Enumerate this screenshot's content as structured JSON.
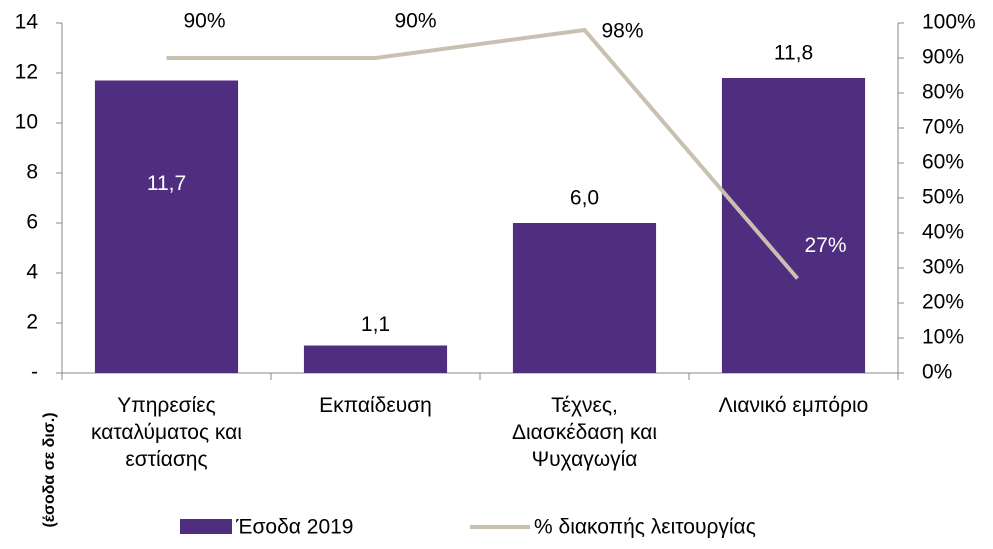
{
  "chart_data": {
    "type": "bar-line",
    "y_label": "(έσοδα σε δισ.)",
    "categories": [
      "Υπηρεσίες καταλύματος και εστίασης",
      "Εκπαίδευση",
      "Τέχνες, Διασκέδαση και Ψυχαγωγία",
      "Λιανικό εμπόριο"
    ],
    "series": [
      {
        "name": "Έσοδα 2019",
        "type": "bar",
        "color": "#4f2d7f",
        "values": [
          11.7,
          1.1,
          6.0,
          11.8
        ],
        "value_labels": [
          "11,7",
          "1,1",
          "6,0",
          "11,8"
        ]
      },
      {
        "name": "% διακοπής λειτουργίας",
        "type": "line",
        "axis": "y2",
        "color": "#c9c0b2",
        "values": [
          90,
          90,
          98,
          27
        ],
        "value_labels": [
          "90%",
          "90%",
          "98%",
          "27%"
        ]
      }
    ],
    "ylim": [
      0,
      14
    ],
    "yticks": [
      {
        "value": 0,
        "label": "-"
      },
      2,
      4,
      6,
      8,
      10,
      12,
      14
    ],
    "y2lim": [
      0,
      100
    ],
    "y2ticks": [
      {
        "value": 0,
        "label": "0%"
      },
      {
        "value": 10,
        "label": "10%"
      },
      {
        "value": 20,
        "label": "20%"
      },
      {
        "value": 30,
        "label": "30%"
      },
      {
        "value": 40,
        "label": "40%"
      },
      {
        "value": 50,
        "label": "50%"
      },
      {
        "value": 60,
        "label": "60%"
      },
      {
        "value": 70,
        "label": "70%"
      },
      {
        "value": 80,
        "label": "80%"
      },
      {
        "value": 90,
        "label": "90%"
      },
      {
        "value": 100,
        "label": "100%"
      }
    ],
    "legend": "bottom"
  }
}
